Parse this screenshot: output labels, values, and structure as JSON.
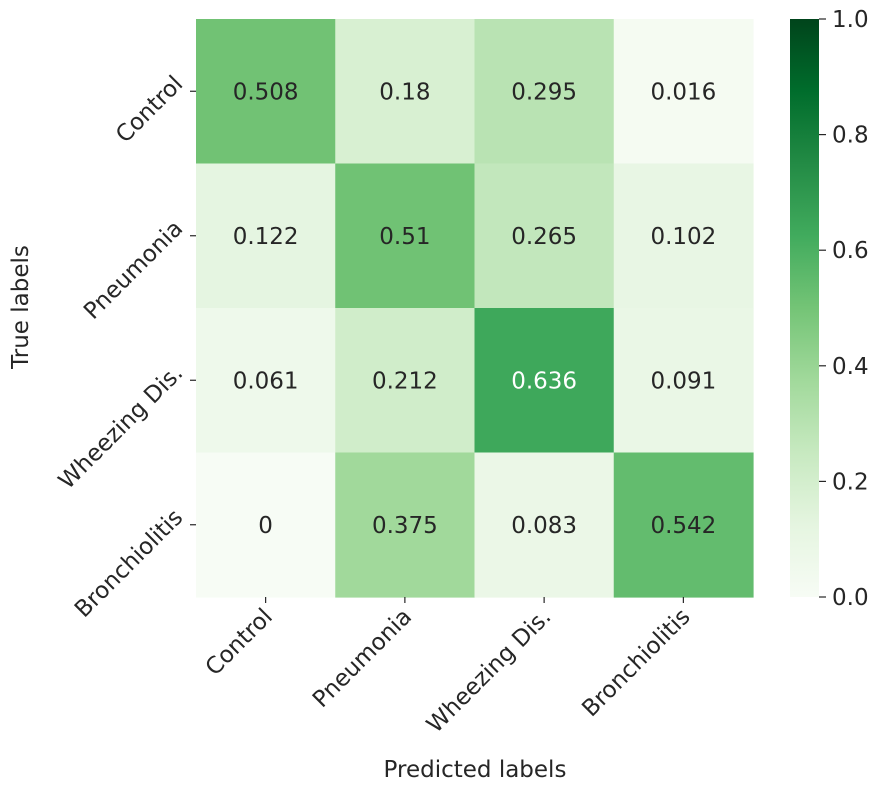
{
  "chart_data": {
    "type": "heatmap",
    "xlabel": "Predicted labels",
    "ylabel": "True labels",
    "x_categories": [
      "Control",
      "Pneumonia",
      "Wheezing Dis.",
      "Bronchiolitis"
    ],
    "y_categories": [
      "Control",
      "Pneumonia",
      "Wheezing Dis.",
      "Bronchiolitis"
    ],
    "values": [
      [
        0.508,
        0.18,
        0.295,
        0.016
      ],
      [
        0.122,
        0.51,
        0.265,
        0.102
      ],
      [
        0.061,
        0.212,
        0.636,
        0.091
      ],
      [
        0,
        0.375,
        0.083,
        0.542
      ]
    ],
    "value_labels": [
      [
        "0.508",
        "0.18",
        "0.295",
        "0.016"
      ],
      [
        "0.122",
        "0.51",
        "0.265",
        "0.102"
      ],
      [
        "0.061",
        "0.212",
        "0.636",
        "0.091"
      ],
      [
        "0",
        "0.375",
        "0.083",
        "0.542"
      ]
    ],
    "colorbar": {
      "range": [
        0.0,
        1.0
      ],
      "ticks": [
        "0.0",
        "0.2",
        "0.4",
        "0.6",
        "0.8",
        "1.0"
      ],
      "colormap": "Greens"
    }
  }
}
